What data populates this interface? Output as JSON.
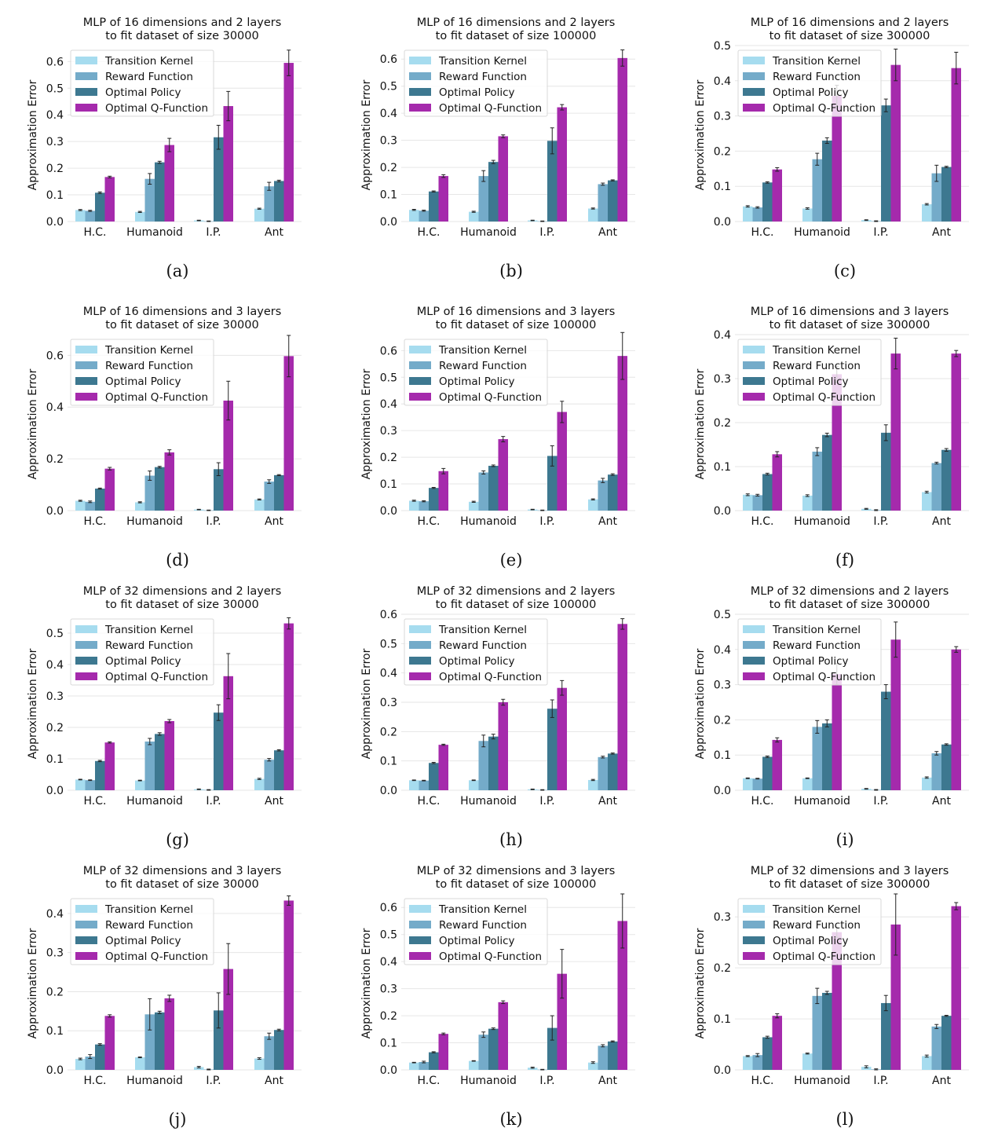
{
  "colors": {
    "transition": "#a6dcef",
    "reward": "#74abc9",
    "policy": "#3d7890",
    "qfunc": "#a52aac",
    "grid": "#e6e6e6"
  },
  "categories": [
    "H.C.",
    "Humanoid",
    "I.P.",
    "Ant"
  ],
  "legend": [
    "Transition Kernel",
    "Reward Function",
    "Optimal Policy",
    "Optimal Q-Function"
  ],
  "ylabel": "Approximation  Error",
  "chart_data": [
    {
      "type": "bar",
      "caption": "(a)",
      "title": [
        "MLP of 16 dimensions and 2 layers",
        "to fit dataset of size 30000"
      ],
      "yticks": [
        0.0,
        0.1,
        0.2,
        0.3,
        0.4,
        0.5,
        0.6
      ],
      "ylim": [
        0,
        0.66
      ],
      "categories": [
        "H.C.",
        "Humanoid",
        "I.P.",
        "Ant"
      ],
      "series": [
        {
          "name": "Transition Kernel",
          "values": [
            0.043,
            0.036,
            0.004,
            0.048
          ],
          "errors": [
            0.002,
            0.002,
            0.001,
            0.002
          ]
        },
        {
          "name": "Reward Function",
          "values": [
            0.04,
            0.16,
            0.001,
            0.132
          ],
          "errors": [
            0.002,
            0.02,
            0.001,
            0.015
          ]
        },
        {
          "name": "Optimal Policy",
          "values": [
            0.108,
            0.222,
            0.316,
            0.152
          ],
          "errors": [
            0.003,
            0.004,
            0.045,
            0.003
          ]
        },
        {
          "name": "Optimal Q-Function",
          "values": [
            0.167,
            0.287,
            0.433,
            0.595
          ],
          "errors": [
            0.003,
            0.025,
            0.055,
            0.048
          ]
        }
      ]
    },
    {
      "type": "bar",
      "caption": "(b)",
      "title": [
        "MLP of 16 dimensions and 2 layers",
        "to fit dataset of size 100000"
      ],
      "yticks": [
        0.0,
        0.1,
        0.2,
        0.3,
        0.4,
        0.5,
        0.6
      ],
      "ylim": [
        0,
        0.65
      ],
      "categories": [
        "H.C.",
        "Humanoid",
        "I.P.",
        "Ant"
      ],
      "series": [
        {
          "name": "Transition Kernel",
          "values": [
            0.043,
            0.036,
            0.004,
            0.048
          ],
          "errors": [
            0.002,
            0.002,
            0.001,
            0.002
          ]
        },
        {
          "name": "Reward Function",
          "values": [
            0.04,
            0.168,
            0.001,
            0.138
          ],
          "errors": [
            0.002,
            0.02,
            0.001,
            0.004
          ]
        },
        {
          "name": "Optimal Policy",
          "values": [
            0.111,
            0.22,
            0.298,
            0.152
          ],
          "errors": [
            0.002,
            0.006,
            0.048,
            0.002
          ]
        },
        {
          "name": "Optimal Q-Function",
          "values": [
            0.168,
            0.315,
            0.422,
            0.604
          ],
          "errors": [
            0.005,
            0.005,
            0.01,
            0.03
          ]
        }
      ]
    },
    {
      "type": "bar",
      "caption": "(c)",
      "title": [
        "MLP of 16 dimensions and 2 layers",
        "to fit dataset of size 300000"
      ],
      "yticks": [
        0.0,
        0.1,
        0.2,
        0.3,
        0.4,
        0.5
      ],
      "ylim": [
        0,
        0.5
      ],
      "categories": [
        "H.C.",
        "Humanoid",
        "I.P.",
        "Ant"
      ],
      "series": [
        {
          "name": "Transition Kernel",
          "values": [
            0.043,
            0.037,
            0.004,
            0.049
          ],
          "errors": [
            0.002,
            0.002,
            0.001,
            0.002
          ]
        },
        {
          "name": "Reward Function",
          "values": [
            0.04,
            0.177,
            0.001,
            0.137
          ],
          "errors": [
            0.002,
            0.017,
            0.001,
            0.023
          ]
        },
        {
          "name": "Optimal Policy",
          "values": [
            0.111,
            0.23,
            0.33,
            0.155
          ],
          "errors": [
            0.002,
            0.008,
            0.018,
            0.002
          ]
        },
        {
          "name": "Optimal Q-Function",
          "values": [
            0.148,
            0.357,
            0.445,
            0.436
          ],
          "errors": [
            0.005,
            0.03,
            0.045,
            0.045
          ]
        }
      ]
    },
    {
      "type": "bar",
      "caption": "(d)",
      "title": [
        "MLP of 16 dimensions and 3 layers",
        "to fit dataset of size 30000"
      ],
      "yticks": [
        0.0,
        0.2,
        0.4,
        0.6
      ],
      "ylim": [
        0,
        0.68
      ],
      "categories": [
        "H.C.",
        "Humanoid",
        "I.P.",
        "Ant"
      ],
      "series": [
        {
          "name": "Transition Kernel",
          "values": [
            0.038,
            0.032,
            0.004,
            0.043
          ],
          "errors": [
            0.002,
            0.002,
            0.001,
            0.002
          ]
        },
        {
          "name": "Reward Function",
          "values": [
            0.034,
            0.135,
            0.001,
            0.112
          ],
          "errors": [
            0.003,
            0.018,
            0.001,
            0.007
          ]
        },
        {
          "name": "Optimal Policy",
          "values": [
            0.085,
            0.168,
            0.16,
            0.137
          ],
          "errors": [
            0.002,
            0.003,
            0.025,
            0.002
          ]
        },
        {
          "name": "Optimal Q-Function",
          "values": [
            0.162,
            0.225,
            0.425,
            0.597
          ],
          "errors": [
            0.005,
            0.01,
            0.075,
            0.08
          ]
        }
      ]
    },
    {
      "type": "bar",
      "caption": "(e)",
      "title": [
        "MLP of 16 dimensions and 3 layers",
        "to fit dataset of size 100000"
      ],
      "yticks": [
        0.0,
        0.1,
        0.2,
        0.3,
        0.4,
        0.5,
        0.6
      ],
      "ylim": [
        0,
        0.66
      ],
      "categories": [
        "H.C.",
        "Humanoid",
        "I.P.",
        "Ant"
      ],
      "series": [
        {
          "name": "Transition Kernel",
          "values": [
            0.037,
            0.033,
            0.004,
            0.042
          ],
          "errors": [
            0.002,
            0.002,
            0.001,
            0.002
          ]
        },
        {
          "name": "Reward Function",
          "values": [
            0.035,
            0.143,
            0.001,
            0.113
          ],
          "errors": [
            0.002,
            0.006,
            0.001,
            0.008
          ]
        },
        {
          "name": "Optimal Policy",
          "values": [
            0.085,
            0.168,
            0.205,
            0.135
          ],
          "errors": [
            0.002,
            0.003,
            0.038,
            0.003
          ]
        },
        {
          "name": "Optimal Q-Function",
          "values": [
            0.148,
            0.268,
            0.37,
            0.58
          ],
          "errors": [
            0.01,
            0.01,
            0.04,
            0.088
          ]
        }
      ]
    },
    {
      "type": "bar",
      "caption": "(f)",
      "title": [
        "MLP of 16 dimensions and 3 layers",
        "to fit dataset of size 300000"
      ],
      "yticks": [
        0.0,
        0.1,
        0.2,
        0.3,
        0.4
      ],
      "ylim": [
        0,
        0.4
      ],
      "categories": [
        "H.C.",
        "Humanoid",
        "I.P.",
        "Ant"
      ],
      "series": [
        {
          "name": "Transition Kernel",
          "values": [
            0.036,
            0.034,
            0.004,
            0.042
          ],
          "errors": [
            0.002,
            0.002,
            0.001,
            0.002
          ]
        },
        {
          "name": "Reward Function",
          "values": [
            0.035,
            0.134,
            0.001,
            0.108
          ],
          "errors": [
            0.002,
            0.009,
            0.001,
            0.002
          ]
        },
        {
          "name": "Optimal Policy",
          "values": [
            0.083,
            0.172,
            0.177,
            0.138
          ],
          "errors": [
            0.002,
            0.004,
            0.018,
            0.003
          ]
        },
        {
          "name": "Optimal Q-Function",
          "values": [
            0.128,
            0.31,
            0.357,
            0.357
          ],
          "errors": [
            0.006,
            0.018,
            0.035,
            0.007
          ]
        }
      ]
    },
    {
      "type": "bar",
      "caption": "(g)",
      "title": [
        "MLP of 32 dimensions and 2 layers",
        "to fit dataset of size 30000"
      ],
      "yticks": [
        0.0,
        0.1,
        0.2,
        0.3,
        0.4,
        0.5
      ],
      "ylim": [
        0,
        0.56
      ],
      "categories": [
        "H.C.",
        "Humanoid",
        "I.P.",
        "Ant"
      ],
      "series": [
        {
          "name": "Transition Kernel",
          "values": [
            0.034,
            0.031,
            0.003,
            0.036
          ],
          "errors": [
            0.001,
            0.001,
            0.001,
            0.002
          ]
        },
        {
          "name": "Reward Function",
          "values": [
            0.032,
            0.155,
            0.001,
            0.097
          ],
          "errors": [
            0.001,
            0.01,
            0.001,
            0.004
          ]
        },
        {
          "name": "Optimal Policy",
          "values": [
            0.093,
            0.179,
            0.247,
            0.127
          ],
          "errors": [
            0.002,
            0.004,
            0.025,
            0.002
          ]
        },
        {
          "name": "Optimal Q-Function",
          "values": [
            0.152,
            0.22,
            0.363,
            0.531
          ],
          "errors": [
            0.002,
            0.005,
            0.072,
            0.018
          ]
        }
      ]
    },
    {
      "type": "bar",
      "caption": "(h)",
      "title": [
        "MLP of 32 dimensions and 2 layers",
        "to fit dataset of size 100000"
      ],
      "yticks": [
        0.0,
        0.1,
        0.2,
        0.3,
        0.4,
        0.5,
        0.6
      ],
      "ylim": [
        0,
        0.6
      ],
      "categories": [
        "H.C.",
        "Humanoid",
        "I.P.",
        "Ant"
      ],
      "series": [
        {
          "name": "Transition Kernel",
          "values": [
            0.034,
            0.034,
            0.003,
            0.035
          ],
          "errors": [
            0.001,
            0.001,
            0.001,
            0.002
          ]
        },
        {
          "name": "Reward Function",
          "values": [
            0.033,
            0.168,
            0.001,
            0.113
          ],
          "errors": [
            0.001,
            0.02,
            0.001,
            0.003
          ]
        },
        {
          "name": "Optimal Policy",
          "values": [
            0.093,
            0.183,
            0.278,
            0.125
          ],
          "errors": [
            0.002,
            0.008,
            0.03,
            0.002
          ]
        },
        {
          "name": "Optimal Q-Function",
          "values": [
            0.155,
            0.3,
            0.349,
            0.567
          ],
          "errors": [
            0.002,
            0.01,
            0.025,
            0.018
          ]
        }
      ]
    },
    {
      "type": "bar",
      "caption": "(i)",
      "title": [
        "MLP of 32 dimensions and 2 layers",
        "to fit dataset of size 300000"
      ],
      "yticks": [
        0.0,
        0.1,
        0.2,
        0.3,
        0.4,
        0.5
      ],
      "ylim": [
        0,
        0.5
      ],
      "categories": [
        "H.C.",
        "Humanoid",
        "I.P.",
        "Ant"
      ],
      "series": [
        {
          "name": "Transition Kernel",
          "values": [
            0.034,
            0.034,
            0.004,
            0.036
          ],
          "errors": [
            0.001,
            0.001,
            0.001,
            0.002
          ]
        },
        {
          "name": "Reward Function",
          "values": [
            0.033,
            0.18,
            0.001,
            0.105
          ],
          "errors": [
            0.001,
            0.018,
            0.001,
            0.005
          ]
        },
        {
          "name": "Optimal Policy",
          "values": [
            0.095,
            0.19,
            0.28,
            0.13
          ],
          "errors": [
            0.002,
            0.01,
            0.02,
            0.002
          ]
        },
        {
          "name": "Optimal Q-Function",
          "values": [
            0.143,
            0.33,
            0.428,
            0.4
          ],
          "errors": [
            0.006,
            0.03,
            0.05,
            0.008
          ]
        }
      ]
    },
    {
      "type": "bar",
      "caption": "(j)",
      "title": [
        "MLP of 32 dimensions and 3 layers",
        "to fit dataset of size 30000"
      ],
      "yticks": [
        0.0,
        0.1,
        0.2,
        0.3,
        0.4
      ],
      "ylim": [
        0,
        0.45
      ],
      "categories": [
        "H.C.",
        "Humanoid",
        "I.P.",
        "Ant"
      ],
      "series": [
        {
          "name": "Transition Kernel",
          "values": [
            0.028,
            0.032,
            0.007,
            0.029
          ],
          "errors": [
            0.002,
            0.001,
            0.002,
            0.002
          ]
        },
        {
          "name": "Reward Function",
          "values": [
            0.034,
            0.142,
            0.001,
            0.086
          ],
          "errors": [
            0.005,
            0.04,
            0.001,
            0.008
          ]
        },
        {
          "name": "Optimal Policy",
          "values": [
            0.065,
            0.147,
            0.152,
            0.102
          ],
          "errors": [
            0.002,
            0.003,
            0.045,
            0.002
          ]
        },
        {
          "name": "Optimal Q-Function",
          "values": [
            0.138,
            0.183,
            0.258,
            0.433
          ],
          "errors": [
            0.003,
            0.008,
            0.065,
            0.012
          ]
        }
      ]
    },
    {
      "type": "bar",
      "caption": "(k)",
      "title": [
        "MLP of 32 dimensions and 3 layers",
        "to fit dataset of size 100000"
      ],
      "yticks": [
        0.0,
        0.1,
        0.2,
        0.3,
        0.4,
        0.5,
        0.6
      ],
      "ylim": [
        0,
        0.65
      ],
      "categories": [
        "H.C.",
        "Humanoid",
        "I.P.",
        "Ant"
      ],
      "series": [
        {
          "name": "Transition Kernel",
          "values": [
            0.027,
            0.033,
            0.008,
            0.027
          ],
          "errors": [
            0.001,
            0.001,
            0.002,
            0.003
          ]
        },
        {
          "name": "Reward Function",
          "values": [
            0.029,
            0.13,
            0.001,
            0.089
          ],
          "errors": [
            0.003,
            0.01,
            0.001,
            0.004
          ]
        },
        {
          "name": "Optimal Policy",
          "values": [
            0.065,
            0.152,
            0.155,
            0.105
          ],
          "errors": [
            0.002,
            0.003,
            0.045,
            0.002
          ]
        },
        {
          "name": "Optimal Q-Function",
          "values": [
            0.133,
            0.25,
            0.355,
            0.55
          ],
          "errors": [
            0.003,
            0.005,
            0.09,
            0.1
          ]
        }
      ]
    },
    {
      "type": "bar",
      "caption": "(l)",
      "title": [
        "MLP of 32 dimensions and 3 layers",
        "to fit dataset of size 300000"
      ],
      "yticks": [
        0.0,
        0.1,
        0.2,
        0.3
      ],
      "ylim": [
        0,
        0.345
      ],
      "categories": [
        "H.C.",
        "Humanoid",
        "I.P.",
        "Ant"
      ],
      "series": [
        {
          "name": "Transition Kernel",
          "values": [
            0.027,
            0.032,
            0.006,
            0.027
          ],
          "errors": [
            0.001,
            0.001,
            0.002,
            0.002
          ]
        },
        {
          "name": "Reward Function",
          "values": [
            0.029,
            0.145,
            0.001,
            0.085
          ],
          "errors": [
            0.003,
            0.015,
            0.001,
            0.004
          ]
        },
        {
          "name": "Optimal Policy",
          "values": [
            0.064,
            0.151,
            0.131,
            0.106
          ],
          "errors": [
            0.002,
            0.003,
            0.015,
            0.001
          ]
        },
        {
          "name": "Optimal Q-Function",
          "values": [
            0.106,
            0.27,
            0.285,
            0.321
          ],
          "errors": [
            0.004,
            0.01,
            0.06,
            0.007
          ]
        }
      ]
    }
  ]
}
